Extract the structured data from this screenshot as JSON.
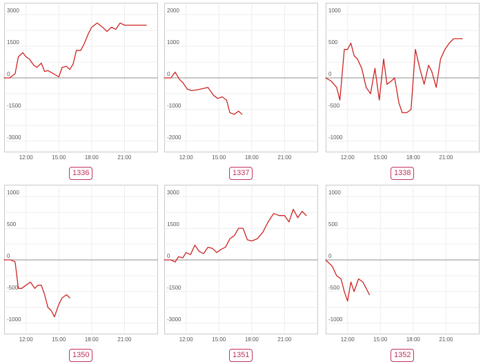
{
  "colors": {
    "line": "#cc2222",
    "label": "#c0305a"
  },
  "chart_data": [
    {
      "type": "line",
      "label": "1336",
      "ylim": [
        -3300,
        3300
      ],
      "yticks": [
        3000,
        1500,
        0,
        -1500,
        -3000
      ],
      "ytick_labels": [
        "3000",
        "1500",
        "0",
        "-1500",
        "-3000"
      ],
      "xlim": [
        10,
        24
      ],
      "xticks": [
        12,
        15,
        18,
        21
      ],
      "xtick_labels": [
        "12:00",
        "15:00",
        "18:00",
        "21:00"
      ],
      "x": [
        10,
        10.5,
        11,
        11.3,
        11.7,
        12,
        12.3,
        12.7,
        13,
        13.4,
        13.7,
        14,
        14.5,
        15,
        15.3,
        15.7,
        16,
        16.3,
        16.6,
        17,
        17.3,
        17.7,
        18,
        18.5,
        19,
        19.4,
        19.8,
        20.2,
        20.6,
        21,
        21.5,
        22,
        22.5,
        23
      ],
      "y": [
        0,
        0,
        200,
        1000,
        1200,
        1000,
        900,
        600,
        500,
        700,
        300,
        350,
        200,
        50,
        500,
        550,
        400,
        650,
        1300,
        1300,
        1600,
        2100,
        2400,
        2600,
        2400,
        2200,
        2400,
        2300,
        2600,
        2500,
        2500,
        2500,
        2500,
        2500
      ]
    },
    {
      "type": "line",
      "label": "1337",
      "ylim": [
        -2200,
        2200
      ],
      "yticks": [
        2000,
        1000,
        0,
        -1000,
        -2000
      ],
      "ytick_labels": [
        "2000",
        "1000",
        "0",
        "-1000",
        "-2000"
      ],
      "xlim": [
        10,
        24
      ],
      "xticks": [
        12,
        15,
        18,
        21
      ],
      "xtick_labels": [
        "12:00",
        "15:00",
        "18:00",
        "21:00"
      ],
      "x": [
        10,
        10.6,
        11,
        11.4,
        11.7,
        12.1,
        12.5,
        13,
        13.5,
        14,
        14.5,
        14.9,
        15.3,
        15.7,
        16,
        16.4,
        16.8,
        17.1
      ],
      "y": [
        0,
        0,
        180,
        -50,
        -150,
        -350,
        -400,
        -380,
        -340,
        -300,
        -550,
        -650,
        -600,
        -700,
        -1100,
        -1150,
        -1050,
        -1150
      ]
    },
    {
      "type": "line",
      "label": "1338",
      "ylim": [
        -1100,
        1100
      ],
      "yticks": [
        1000,
        500,
        0,
        -500,
        -1000
      ],
      "ytick_labels": [
        "1000",
        "500",
        "0",
        "-500",
        "-1000"
      ],
      "xlim": [
        10,
        24
      ],
      "xticks": [
        12,
        15,
        18,
        21
      ],
      "xtick_labels": [
        "12:00",
        "15:00",
        "18:00",
        "21:00"
      ],
      "x": [
        10,
        10.5,
        11,
        11.3,
        11.7,
        12,
        12.3,
        12.6,
        12.9,
        13.3,
        13.7,
        14.1,
        14.5,
        14.9,
        15.3,
        15.6,
        16,
        16.3,
        16.7,
        17,
        17.4,
        17.8,
        18.2,
        18.6,
        19,
        19.4,
        19.7,
        20.1,
        20.5,
        20.9,
        21.3,
        21.7,
        22.1,
        22.5
      ],
      "y": [
        0,
        -50,
        -150,
        -350,
        450,
        450,
        550,
        350,
        300,
        150,
        -150,
        -250,
        150,
        -350,
        300,
        -100,
        -50,
        0,
        -400,
        -550,
        -550,
        -500,
        450,
        150,
        -100,
        200,
        100,
        -150,
        300,
        450,
        550,
        620,
        620,
        620
      ]
    },
    {
      "type": "line",
      "label": "1350",
      "ylim": [
        -1100,
        1100
      ],
      "yticks": [
        1000,
        500,
        0,
        -500,
        -1000
      ],
      "ytick_labels": [
        "1000",
        "500",
        "0",
        "-500",
        "-1000"
      ],
      "xlim": [
        10,
        24
      ],
      "xticks": [
        12,
        15,
        18,
        21
      ],
      "xtick_labels": [
        "12:00",
        "15:00",
        "18:00",
        "21:00"
      ],
      "x": [
        10,
        10.6,
        11,
        11.3,
        11.6,
        12,
        12.4,
        12.8,
        13.1,
        13.4,
        13.7,
        14,
        14.3,
        14.6,
        15,
        15.3,
        15.7,
        16
      ],
      "y": [
        0,
        0,
        -30,
        -450,
        -450,
        -400,
        -350,
        -450,
        -400,
        -400,
        -550,
        -750,
        -800,
        -900,
        -700,
        -600,
        -550,
        -600
      ]
    },
    {
      "type": "line",
      "label": "1351",
      "ylim": [
        -3300,
        3300
      ],
      "yticks": [
        3000,
        1500,
        0,
        -1500,
        -3000
      ],
      "ytick_labels": [
        "3000",
        "1500",
        "0",
        "-1500",
        "-3000"
      ],
      "xlim": [
        10,
        24
      ],
      "xticks": [
        12,
        15,
        18,
        21
      ],
      "xtick_labels": [
        "12:00",
        "15:00",
        "18:00",
        "21:00"
      ],
      "x": [
        10,
        10.6,
        11,
        11.3,
        11.7,
        12,
        12.4,
        12.8,
        13.2,
        13.6,
        14,
        14.4,
        14.8,
        15.2,
        15.6,
        16,
        16.4,
        16.8,
        17.2,
        17.6,
        18,
        18.5,
        19,
        19.5,
        20,
        20.5,
        21,
        21.4,
        21.8,
        22.2,
        22.6,
        23
      ],
      "y": [
        0,
        0,
        -100,
        150,
        100,
        350,
        250,
        700,
        400,
        300,
        600,
        550,
        350,
        500,
        600,
        1000,
        1150,
        1500,
        1500,
        950,
        900,
        1000,
        1300,
        1800,
        2200,
        2100,
        2100,
        1800,
        2400,
        2000,
        2300,
        2100
      ]
    },
    {
      "type": "line",
      "label": "1352",
      "ylim": [
        -1100,
        1100
      ],
      "yticks": [
        1000,
        500,
        0,
        -500,
        -1000
      ],
      "ytick_labels": [
        "1000",
        "500",
        "0",
        "-500",
        "-1000"
      ],
      "xlim": [
        10,
        24
      ],
      "xticks": [
        12,
        15,
        18,
        21
      ],
      "xtick_labels": [
        "12:00",
        "15:00",
        "18:00",
        "21:00"
      ],
      "x": [
        10,
        10.6,
        11,
        11.4,
        11.7,
        12,
        12.3,
        12.6,
        13,
        13.4,
        13.7,
        14
      ],
      "y": [
        0,
        -100,
        -250,
        -300,
        -500,
        -650,
        -350,
        -500,
        -300,
        -350,
        -450,
        -550
      ]
    }
  ]
}
